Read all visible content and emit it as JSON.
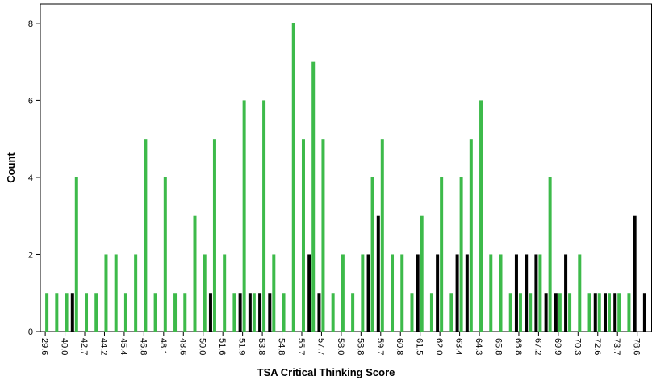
{
  "chart_data": {
    "type": "bar",
    "x_label": "TSA Critical Thinking Score",
    "y_label": "Count",
    "categories": [
      "29.6",
      null,
      "40.0",
      null,
      "42.7",
      null,
      "44.2",
      null,
      "45.4",
      null,
      "46.8",
      null,
      "48.1",
      null,
      "48.6",
      null,
      "50.0",
      null,
      "51.6",
      null,
      "51.9",
      null,
      "53.8",
      null,
      "54.8",
      null,
      "55.7",
      null,
      "57.7",
      null,
      "58.0",
      null,
      "58.8",
      null,
      "59.7",
      null,
      "60.8",
      null,
      "61.5",
      null,
      "62.0",
      null,
      "63.4",
      null,
      "64.3",
      null,
      "65.8",
      null,
      "66.8",
      null,
      "67.2",
      null,
      "69.9",
      null,
      "70.3",
      null,
      "72.6",
      null,
      "73.7",
      null,
      "78.6",
      null
    ],
    "series": [
      {
        "color": "#000000",
        "values": [
          0,
          0,
          0,
          1,
          0,
          0,
          0,
          0,
          0,
          0,
          0,
          0,
          0,
          0,
          0,
          0,
          0,
          1,
          0,
          0,
          1,
          1,
          1,
          1,
          0,
          0,
          0,
          2,
          1,
          0,
          0,
          0,
          0,
          2,
          3,
          0,
          0,
          0,
          2,
          0,
          2,
          0,
          2,
          2,
          0,
          0,
          0,
          0,
          2,
          2,
          2,
          1,
          1,
          2,
          0,
          0,
          1,
          1,
          1,
          0,
          3,
          1
        ]
      },
      {
        "color": "#3dba4a",
        "values": [
          1,
          1,
          1,
          4,
          1,
          1,
          2,
          2,
          1,
          2,
          5,
          1,
          4,
          1,
          1,
          3,
          2,
          5,
          2,
          1,
          6,
          1,
          6,
          2,
          1,
          8,
          5,
          7,
          5,
          1,
          2,
          1,
          2,
          4,
          5,
          2,
          2,
          1,
          3,
          1,
          4,
          1,
          4,
          5,
          6,
          2,
          2,
          1,
          1,
          1,
          2,
          4,
          1,
          1,
          2,
          1,
          1,
          1,
          1,
          1,
          0,
          0
        ]
      }
    ],
    "ylim": [
      0,
      8.5
    ],
    "yticks": [
      0,
      2,
      4,
      6,
      8
    ]
  }
}
